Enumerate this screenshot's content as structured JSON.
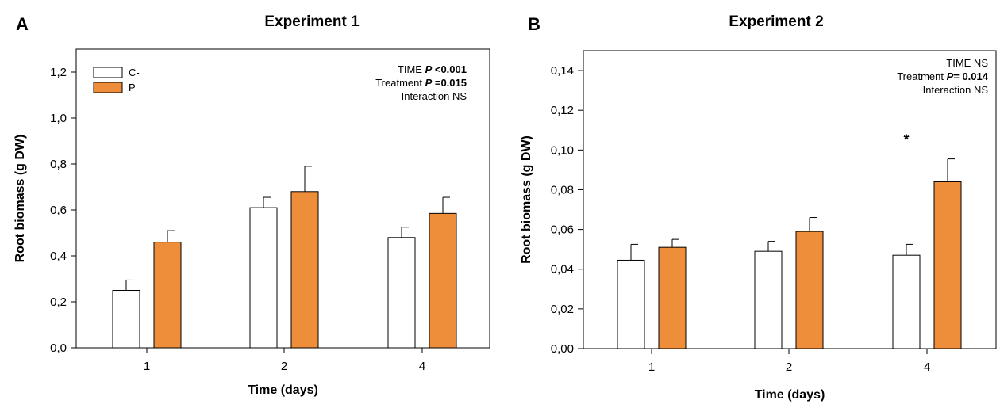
{
  "chart_data": [
    {
      "type": "bar",
      "panel_label": "A",
      "title": "Experiment 1",
      "xlabel": "Time (days)",
      "ylabel": "Root biomass (g DW)",
      "ylim": [
        0,
        1.3
      ],
      "yticks": [
        "0,0",
        "0,2",
        "0,4",
        "0,6",
        "0,8",
        "1,0",
        "1,2"
      ],
      "ytick_values": [
        0,
        0.2,
        0.4,
        0.6,
        0.8,
        1.0,
        1.2
      ],
      "categories": [
        "1",
        "2",
        "4"
      ],
      "series": [
        {
          "name": "C-",
          "color": "#ffffff",
          "values": [
            0.25,
            0.61,
            0.48
          ],
          "errors": [
            0.045,
            0.045,
            0.045
          ]
        },
        {
          "name": "P",
          "color": "#ee8d3a",
          "values": [
            0.46,
            0.68,
            0.585
          ],
          "errors": [
            0.05,
            0.11,
            0.07
          ]
        }
      ],
      "stats": [
        {
          "pre": "TIME ",
          "p": "P",
          "val": " <0.001"
        },
        {
          "pre": "Treatment ",
          "p": "P",
          "val": " =0.015"
        },
        {
          "pre": "Interaction NS",
          "p": "",
          "val": ""
        }
      ],
      "significance": []
    },
    {
      "type": "bar",
      "panel_label": "B",
      "title": "Experiment 2",
      "xlabel": "Time (days)",
      "ylabel": "Root biomass (g DW)",
      "ylim": [
        0,
        0.15
      ],
      "yticks": [
        "0,00",
        "0,02",
        "0,04",
        "0,06",
        "0,08",
        "0,10",
        "0,12",
        "0,14"
      ],
      "ytick_values": [
        0,
        0.02,
        0.04,
        0.06,
        0.08,
        0.1,
        0.12,
        0.14
      ],
      "categories": [
        "1",
        "2",
        "4"
      ],
      "series": [
        {
          "name": "C-",
          "color": "#ffffff",
          "values": [
            0.0445,
            0.049,
            0.047
          ],
          "errors": [
            0.008,
            0.005,
            0.0055
          ]
        },
        {
          "name": "P",
          "color": "#ee8d3a",
          "values": [
            0.051,
            0.059,
            0.084
          ],
          "errors": [
            0.004,
            0.007,
            0.0115
          ]
        }
      ],
      "stats": [
        {
          "pre": "TIME NS",
          "p": "",
          "val": ""
        },
        {
          "pre": "Treatment ",
          "p": "P",
          "val": "= 0.014"
        },
        {
          "pre": "Interaction NS",
          "p": "",
          "val": ""
        }
      ],
      "significance": [
        {
          "category": "4",
          "label": "*"
        }
      ]
    }
  ]
}
